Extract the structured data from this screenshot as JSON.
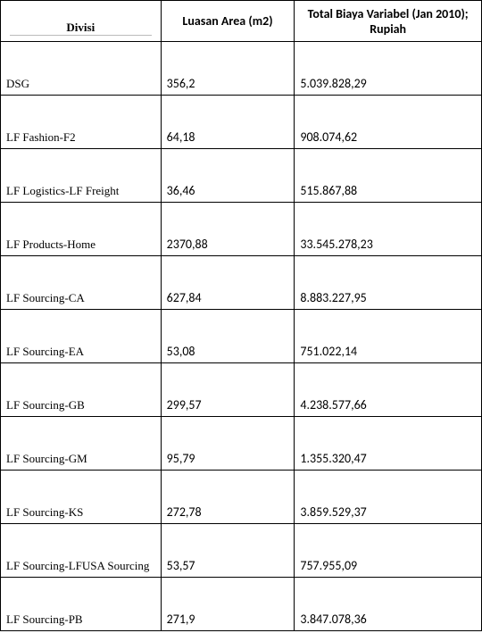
{
  "table": {
    "columns": [
      {
        "label": "Divisi"
      },
      {
        "label": "Luasan Area (m2)"
      },
      {
        "label": "Total Biaya Variabel (Jan 2010); Rupiah"
      }
    ],
    "rows": [
      {
        "divisi": "DSG",
        "area": "356,2",
        "biaya": "5.039.828,29"
      },
      {
        "divisi": "LF Fashion-F2",
        "area": "64,18",
        "biaya": "908.074,62"
      },
      {
        "divisi": "LF Logistics-LF Freight",
        "area": "36,46",
        "biaya": "515.867,88"
      },
      {
        "divisi": "LF Products-Home",
        "area": "2370,88",
        "biaya": "33.545.278,23"
      },
      {
        "divisi": "LF Sourcing-CA",
        "area": "627,84",
        "biaya": "8.883.227,95"
      },
      {
        "divisi": "LF Sourcing-EA",
        "area": "53,08",
        "biaya": "751.022,14"
      },
      {
        "divisi": "LF Sourcing-GB",
        "area": "299,57",
        "biaya": "4.238.577,66"
      },
      {
        "divisi": "LF Sourcing-GM",
        "area": "95,79",
        "biaya": "1.355.320,47"
      },
      {
        "divisi": "LF Sourcing-KS",
        "area": "272,78",
        "biaya": "3.859.529,37"
      },
      {
        "divisi": "LF Sourcing-LFUSA Sourcing",
        "area": "53,57",
        "biaya": "757.955,09"
      },
      {
        "divisi": "LF Sourcing-PB",
        "area": "271,9",
        "biaya": "3.847.078,36"
      }
    ]
  }
}
